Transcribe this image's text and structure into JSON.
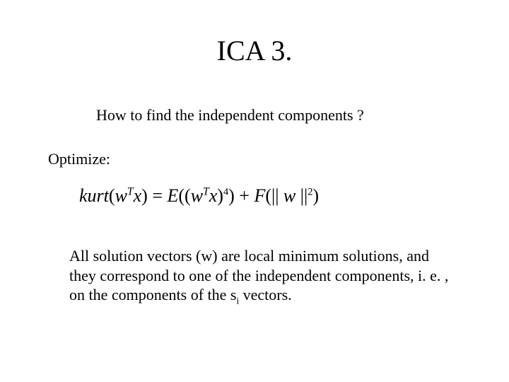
{
  "title": "ICA 3.",
  "subtitle": "How to find the independent components ?",
  "optimize_label": "Optimize:",
  "equation": {
    "lhs_func": "kurt",
    "lhs_inner_pre": "w",
    "lhs_inner_sup": "T",
    "lhs_inner_post": "x",
    "eq": " = ",
    "rhs1_func": "E",
    "rhs1_open": "((",
    "rhs1_inner_pre": "w",
    "rhs1_inner_sup": "T",
    "rhs1_inner_post": "x",
    "rhs1_close": ")",
    "rhs1_pow": "4",
    "rhs1_end": ")",
    "plus": " + ",
    "rhs2_func": "F",
    "rhs2_open": "(|| ",
    "rhs2_var": "w",
    "rhs2_close": " ||",
    "rhs2_pow": "2",
    "rhs2_end": ")"
  },
  "body_pre": "All solution vectors (w) are local minimum solutions, and they correspond to one of the independent components, i. e. , on the components of the s",
  "body_sub": "i",
  "body_post": " vectors.",
  "colors": {
    "background": "#ffffff",
    "text": "#000000"
  },
  "fonts": {
    "title_size_pt": 40,
    "body_size_pt": 22,
    "equation_size_pt": 26,
    "family": "Times New Roman"
  }
}
